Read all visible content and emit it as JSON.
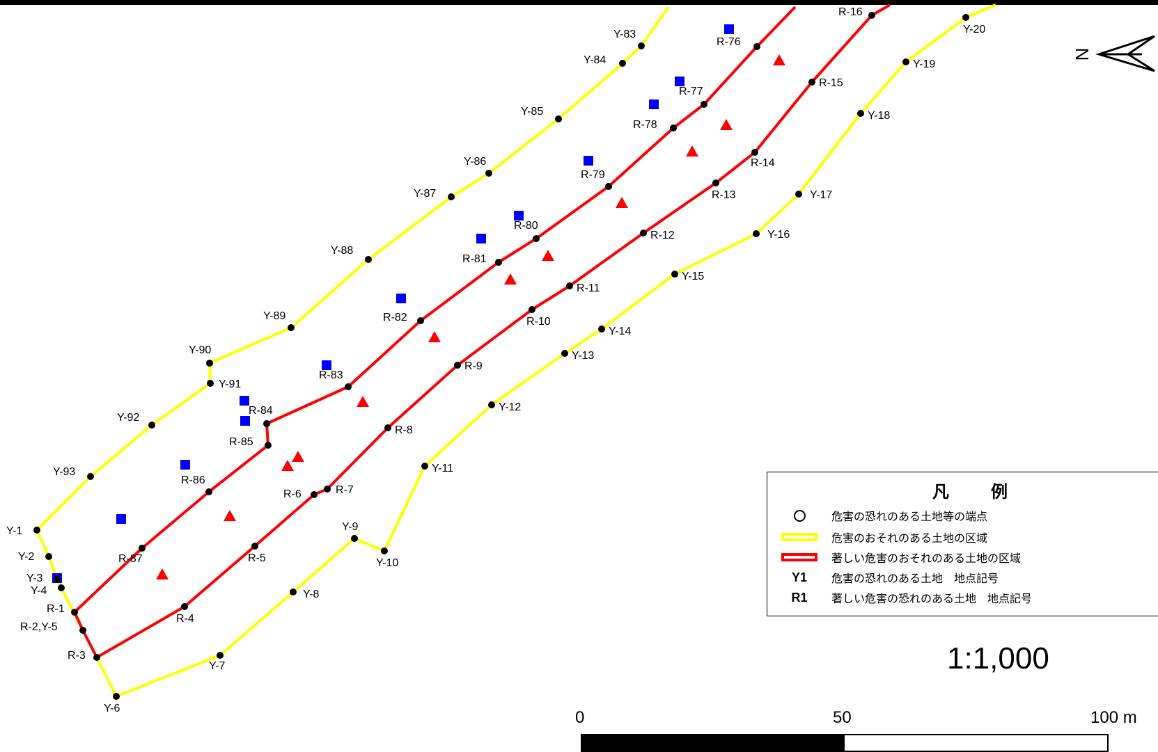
{
  "map": {
    "colors": {
      "yellow_zone": "#ffff00",
      "red_zone": "#ff0000",
      "blue_marker": "#0000ff",
      "red_marker": "#ff0000",
      "point": "#000000"
    },
    "yellow_points": [
      {
        "label": "Y-1"
      },
      {
        "label": "Y-2"
      },
      {
        "label": "Y-3"
      },
      {
        "label": "Y-4"
      },
      {
        "label": "R-2,Y-5"
      },
      {
        "label": "Y-6"
      },
      {
        "label": "Y-7"
      },
      {
        "label": "Y-8"
      },
      {
        "label": "Y-9"
      },
      {
        "label": "Y-10"
      },
      {
        "label": "Y-11"
      },
      {
        "label": "Y-12"
      },
      {
        "label": "Y-13"
      },
      {
        "label": "Y-14"
      },
      {
        "label": "Y-15"
      },
      {
        "label": "Y-16"
      },
      {
        "label": "Y-17"
      },
      {
        "label": "Y-18"
      },
      {
        "label": "Y-19"
      },
      {
        "label": "Y-20"
      },
      {
        "label": "Y-83"
      },
      {
        "label": "Y-84"
      },
      {
        "label": "Y-85"
      },
      {
        "label": "Y-86"
      },
      {
        "label": "Y-87"
      },
      {
        "label": "Y-88"
      },
      {
        "label": "Y-89"
      },
      {
        "label": "Y-90"
      },
      {
        "label": "Y-91"
      },
      {
        "label": "Y-92"
      },
      {
        "label": "Y-93"
      }
    ],
    "red_points": [
      {
        "label": "R-1"
      },
      {
        "label": "R-3"
      },
      {
        "label": "R-4"
      },
      {
        "label": "R-5"
      },
      {
        "label": "R-6"
      },
      {
        "label": "R-7"
      },
      {
        "label": "R-8"
      },
      {
        "label": "R-9"
      },
      {
        "label": "R-10"
      },
      {
        "label": "R-11"
      },
      {
        "label": "R-12"
      },
      {
        "label": "R-13"
      },
      {
        "label": "R-14"
      },
      {
        "label": "R-15"
      },
      {
        "label": "R-16"
      },
      {
        "label": "R-76"
      },
      {
        "label": "R-77"
      },
      {
        "label": "R-78"
      },
      {
        "label": "R-79"
      },
      {
        "label": "R-80"
      },
      {
        "label": "R-81"
      },
      {
        "label": "R-82"
      },
      {
        "label": "R-83"
      },
      {
        "label": "R-84"
      },
      {
        "label": "R-85"
      },
      {
        "label": "R-86"
      },
      {
        "label": "R-87"
      }
    ],
    "north_arrow_label": "N"
  },
  "legend": {
    "title": "凡　例",
    "items": [
      {
        "symbol": "circle",
        "text": "危害の恐れのある土地等の端点"
      },
      {
        "symbol": "yellow-line",
        "text": "危害のおそれのある土地の区域"
      },
      {
        "symbol": "red-line",
        "text": "著しい危害のおそれのある土地の区域"
      },
      {
        "symbol": "code",
        "code": "Y1",
        "text": "危害の恐れのある土地　地点記号"
      },
      {
        "symbol": "code",
        "code": "R1",
        "text": "著しい危害の恐れのある土地　地点記号"
      }
    ]
  },
  "scale": {
    "ratio": "1:1,000",
    "ticks": [
      "0",
      "50",
      "100 m"
    ]
  }
}
